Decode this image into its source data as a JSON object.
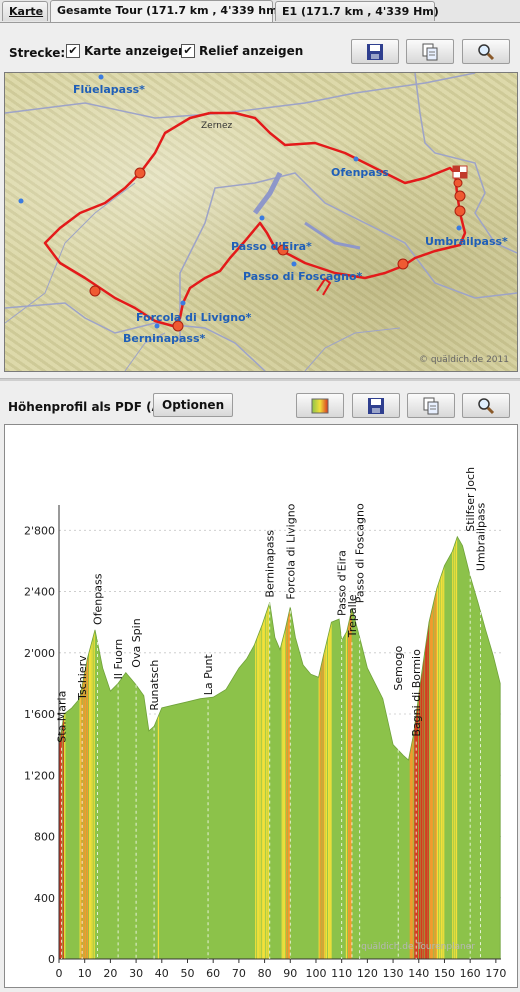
{
  "tabs": [
    {
      "label": "Karte",
      "active": false
    },
    {
      "label": "Gesamte Tour (171.7 km , 4'339 hm)",
      "active": true
    },
    {
      "label": "E1 (171.7 km , 4'339 Hm)",
      "active": false
    }
  ],
  "map_toolbar": {
    "label": "Strecke:",
    "show_map_label": "Karte anzeigen",
    "show_map_checked": true,
    "show_relief_label": "Relief anzeigen",
    "show_relief_checked": true,
    "buttons": [
      "save-icon",
      "copy-icon",
      "zoom-icon"
    ]
  },
  "map": {
    "labels": [
      "Flüelapass*",
      "Zernez",
      "Ofenpass",
      "Umbrailpass*",
      "Passo d'Eira*",
      "Passo di Foscagno*",
      "Forcola di Livigno*",
      "Berninapass*"
    ],
    "copyright": "© quäldich.de 2011",
    "route_color": "#e31a1a",
    "river_color": "#8e97c9"
  },
  "profile_toolbar": {
    "label": "Höhenprofil als PDF (A4):",
    "options_label": "Optionen",
    "buttons": [
      "color-icon",
      "save-icon",
      "copy-icon",
      "zoom-icon"
    ]
  },
  "chart_data": {
    "type": "area",
    "xlabel": "",
    "ylabel": "",
    "xlim": [
      0,
      172
    ],
    "ylim": [
      0,
      2900
    ],
    "x_ticks": [
      0,
      10,
      20,
      30,
      40,
      50,
      60,
      70,
      80,
      90,
      100,
      110,
      120,
      130,
      140,
      150,
      160,
      170
    ],
    "y_ticks": [
      0,
      400,
      800,
      1200,
      1600,
      2000,
      2400,
      2800
    ],
    "y_tick_labels": [
      "0",
      "400",
      "800",
      "1'200",
      "1'600",
      "2'000",
      "2'400",
      "2'800"
    ],
    "x": [
      0,
      2,
      5,
      8,
      11,
      14,
      17,
      20,
      23,
      26,
      28,
      30,
      33,
      35,
      37,
      40,
      45,
      50,
      55,
      60,
      65,
      70,
      73,
      76,
      79,
      82,
      84,
      86,
      88,
      90,
      92,
      95,
      98,
      101,
      103,
      106,
      109,
      110,
      112,
      114,
      117,
      120,
      123,
      126,
      130,
      134,
      136,
      138,
      141,
      144,
      147,
      150,
      153,
      155,
      157,
      160,
      163,
      166,
      169,
      171.7
    ],
    "elevation": [
      1400,
      1600,
      1640,
      1700,
      1960,
      2150,
      1900,
      1750,
      1800,
      1870,
      1830,
      1790,
      1720,
      1490,
      1520,
      1640,
      1660,
      1680,
      1700,
      1710,
      1760,
      1900,
      1960,
      2050,
      2180,
      2330,
      2100,
      2020,
      2150,
      2300,
      2100,
      1920,
      1860,
      1840,
      1990,
      2200,
      2220,
      2080,
      2140,
      2290,
      2100,
      1900,
      1800,
      1700,
      1400,
      1330,
      1300,
      1470,
      1850,
      2200,
      2420,
      2570,
      2660,
      2758,
      2700,
      2501,
      2330,
      2150,
      1980,
      1800
    ],
    "annotations": [
      {
        "label": "Sta.Maria",
        "x": 1,
        "y": 1380
      },
      {
        "label": "Tschierv",
        "x": 9,
        "y": 1660
      },
      {
        "label": "Ofenpass",
        "x": 15,
        "y": 2149
      },
      {
        "label": "Il Fuorn",
        "x": 23,
        "y": 1794
      },
      {
        "label": "Ova Spin",
        "x": 30,
        "y": 1870
      },
      {
        "label": "Runatsch",
        "x": 37,
        "y": 1590
      },
      {
        "label": "La Punt",
        "x": 58,
        "y": 1690
      },
      {
        "label": "Berninapass",
        "x": 82,
        "y": 2328
      },
      {
        "label": "Forcola di Livigno",
        "x": 90,
        "y": 2315
      },
      {
        "label": "Passo d'Eira",
        "x": 110,
        "y": 2208
      },
      {
        "label": "Trepalle",
        "x": 114,
        "y": 2069
      },
      {
        "label": "Passo di Foscagno",
        "x": 117,
        "y": 2291
      },
      {
        "label": "Semogo",
        "x": 132,
        "y": 1720
      },
      {
        "label": "Bagni di Bormio",
        "x": 139,
        "y": 1420
      },
      {
        "label": "Stilfser Joch",
        "x": 160,
        "y": 2758
      },
      {
        "label": "Umbrailpass",
        "x": 164,
        "y": 2501
      }
    ],
    "watermark": "quäldich.de Tourenplaner",
    "grid": true,
    "fill_base_color": "#8cc24a",
    "gradient_colors": [
      "#8cc24a",
      "#f2e03a",
      "#f29a2e",
      "#d8361f"
    ]
  }
}
